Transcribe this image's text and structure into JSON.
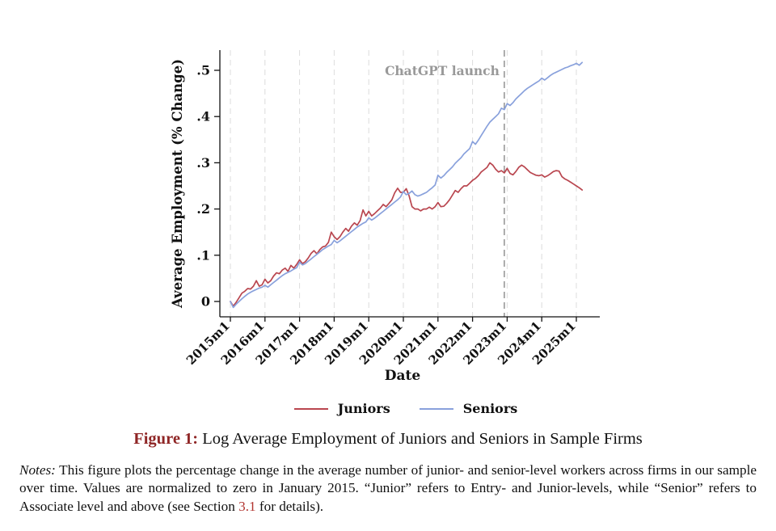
{
  "colors": {
    "juniors": "#b9464f",
    "seniors": "#89a1dc",
    "grid": "#dcdcdc",
    "axis": "#111111",
    "event_line": "#8a8a8a",
    "annotation_text": "#999999",
    "caption_label": "#8f2626",
    "link": "#b23530",
    "text": "#111111"
  },
  "chart": {
    "ylabel": "Average Employment (% Change)",
    "xlabel": "Date",
    "annotation": "ChatGPT launch",
    "y_ticks": [
      {
        "label": "0",
        "value": 0
      },
      {
        "label": ".1",
        "value": 0.1
      },
      {
        "label": ".2",
        "value": 0.2
      },
      {
        "label": ".3",
        "value": 0.3
      },
      {
        "label": ".4",
        "value": 0.4
      },
      {
        "label": ".5",
        "value": 0.5
      }
    ],
    "x_ticks": [
      "2015m1",
      "2016m1",
      "2017m1",
      "2018m1",
      "2019m1",
      "2020m1",
      "2021m1",
      "2022m1",
      "2023m1",
      "2024m1",
      "2025m1"
    ]
  },
  "legend": {
    "items": [
      {
        "label": "Juniors",
        "color_key": "juniors"
      },
      {
        "label": "Seniors",
        "color_key": "seniors"
      }
    ]
  },
  "caption": {
    "label": "Figure 1:",
    "text": " Log Average Employment of Juniors and Seniors in Sample Firms"
  },
  "notes": {
    "label": "Notes:",
    "text1": " This figure plots the percentage change in the average number of junior- and senior-level workers across firms in our sample over time. Values are normalized to zero in January 2015. “Junior” refers to Entry- and Junior-levels, while “Senior” refers to Associate level and above (see Section ",
    "link": "3.1",
    "text2": " for details)."
  },
  "chart_data": {
    "type": "line",
    "title": "",
    "xlabel": "Date",
    "ylabel": "Average Employment (% Change)",
    "x_start": "2015m1",
    "x_end": "2025m3",
    "x_frequency": "monthly",
    "xtick_labels": [
      "2015m1",
      "2016m1",
      "2017m1",
      "2018m1",
      "2019m1",
      "2020m1",
      "2021m1",
      "2022m1",
      "2023m1",
      "2024m1",
      "2025m1"
    ],
    "ylim": [
      -0.033,
      0.55
    ],
    "grid": "vertical-dashed-yearly",
    "legend_position": "bottom",
    "event": {
      "label": "ChatGPT launch",
      "date": "2022m11",
      "x_index": 95
    },
    "series": [
      {
        "name": "Juniors",
        "color": "#b9464f",
        "values": [
          0.0,
          -0.01,
          -0.002,
          0.008,
          0.018,
          0.022,
          0.028,
          0.027,
          0.033,
          0.045,
          0.033,
          0.036,
          0.048,
          0.04,
          0.045,
          0.055,
          0.062,
          0.06,
          0.068,
          0.072,
          0.065,
          0.078,
          0.072,
          0.08,
          0.09,
          0.082,
          0.086,
          0.094,
          0.104,
          0.11,
          0.103,
          0.112,
          0.118,
          0.12,
          0.128,
          0.15,
          0.14,
          0.134,
          0.14,
          0.15,
          0.158,
          0.152,
          0.163,
          0.17,
          0.165,
          0.175,
          0.198,
          0.185,
          0.195,
          0.185,
          0.19,
          0.196,
          0.202,
          0.21,
          0.205,
          0.212,
          0.22,
          0.235,
          0.245,
          0.236,
          0.236,
          0.244,
          0.228,
          0.205,
          0.2,
          0.2,
          0.196,
          0.2,
          0.2,
          0.204,
          0.2,
          0.205,
          0.214,
          0.205,
          0.206,
          0.212,
          0.22,
          0.23,
          0.24,
          0.236,
          0.244,
          0.25,
          0.25,
          0.256,
          0.262,
          0.266,
          0.272,
          0.28,
          0.285,
          0.29,
          0.3,
          0.295,
          0.286,
          0.28,
          0.283,
          0.278,
          0.288,
          0.277,
          0.274,
          0.281,
          0.29,
          0.295,
          0.291,
          0.285,
          0.279,
          0.276,
          0.273,
          0.272,
          0.274,
          0.269,
          0.272,
          0.276,
          0.281,
          0.283,
          0.282,
          0.27,
          0.265,
          0.262,
          0.258,
          0.254,
          0.25,
          0.246,
          0.241
        ]
      },
      {
        "name": "Seniors",
        "color": "#89a1dc",
        "values": [
          0.0,
          -0.013,
          -0.006,
          0.0,
          0.006,
          0.011,
          0.016,
          0.02,
          0.023,
          0.026,
          0.029,
          0.031,
          0.035,
          0.031,
          0.036,
          0.041,
          0.046,
          0.051,
          0.056,
          0.06,
          0.063,
          0.066,
          0.07,
          0.073,
          0.085,
          0.079,
          0.082,
          0.087,
          0.092,
          0.097,
          0.102,
          0.107,
          0.112,
          0.116,
          0.12,
          0.123,
          0.132,
          0.127,
          0.131,
          0.136,
          0.141,
          0.146,
          0.151,
          0.156,
          0.161,
          0.165,
          0.169,
          0.172,
          0.181,
          0.176,
          0.18,
          0.185,
          0.19,
          0.195,
          0.2,
          0.205,
          0.21,
          0.215,
          0.22,
          0.226,
          0.238,
          0.231,
          0.234,
          0.239,
          0.231,
          0.228,
          0.23,
          0.233,
          0.236,
          0.241,
          0.246,
          0.252,
          0.273,
          0.267,
          0.272,
          0.279,
          0.285,
          0.291,
          0.299,
          0.305,
          0.311,
          0.319,
          0.325,
          0.331,
          0.346,
          0.34,
          0.349,
          0.359,
          0.369,
          0.379,
          0.388,
          0.394,
          0.4,
          0.406,
          0.418,
          0.415,
          0.428,
          0.424,
          0.43,
          0.438,
          0.444,
          0.45,
          0.456,
          0.461,
          0.465,
          0.469,
          0.473,
          0.477,
          0.483,
          0.479,
          0.484,
          0.489,
          0.493,
          0.496,
          0.499,
          0.502,
          0.505,
          0.507,
          0.51,
          0.512,
          0.515,
          0.511,
          0.517
        ]
      }
    ]
  }
}
